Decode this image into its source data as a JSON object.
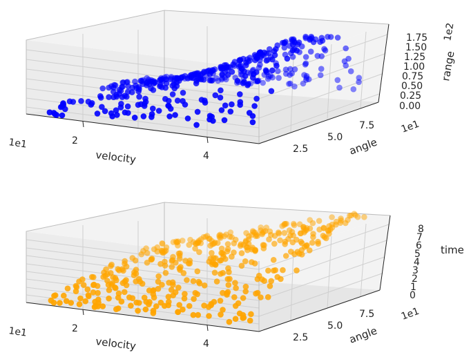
{
  "chart_data": [
    {
      "type": "scatter",
      "projection": "3d",
      "title": "",
      "xlabel": "velocity",
      "ylabel": "angle",
      "zlabel": "range",
      "x_multiplier_label": "1e1",
      "y_multiplier_label": "1e1",
      "z_multiplier_label": "1e2",
      "x_tick_labels": [
        "2",
        "4"
      ],
      "y_tick_labels": [
        "2.5",
        "5.0",
        "7.5"
      ],
      "z_tick_labels": [
        "0.00",
        "0.25",
        "0.50",
        "0.75",
        "1.00",
        "1.25",
        "1.50",
        "1.75"
      ],
      "xlim": [
        10,
        50
      ],
      "ylim": [
        0,
        90
      ],
      "zlim": [
        0,
        190
      ],
      "grid": true,
      "color": "#0000ff",
      "n_points": 400,
      "seed": 11
    },
    {
      "type": "scatter",
      "projection": "3d",
      "title": "",
      "xlabel": "velocity",
      "ylabel": "angle",
      "zlabel": "time",
      "x_multiplier_label": "1e1",
      "y_multiplier_label": "1e1",
      "z_multiplier_label": "",
      "x_tick_labels": [
        "2",
        "4"
      ],
      "y_tick_labels": [
        "2.5",
        "5.0",
        "7.5"
      ],
      "z_tick_labels": [
        "0",
        "1",
        "2",
        "3",
        "4",
        "5",
        "6",
        "7",
        "8"
      ],
      "xlim": [
        10,
        50
      ],
      "ylim": [
        0,
        90
      ],
      "zlim": [
        0,
        9
      ],
      "grid": true,
      "color": "#ffa500",
      "n_points": 420,
      "seed": 29
    }
  ]
}
